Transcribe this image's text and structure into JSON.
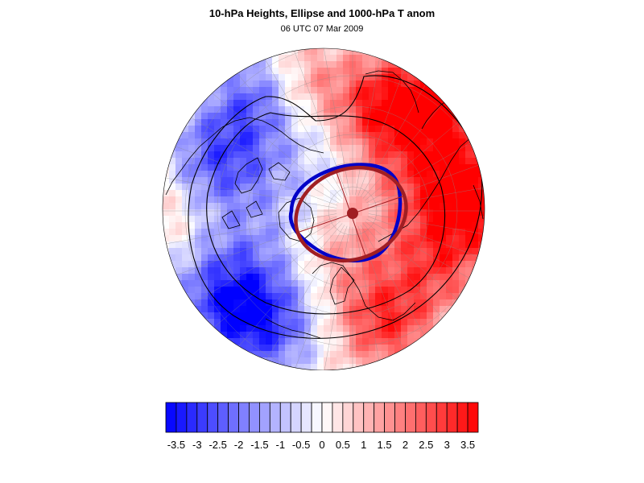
{
  "title": "10-hPa Heights, Ellipse and 1000-hPa T anom",
  "subtitle": "06 UTC 07 Mar 2009",
  "colors": {
    "cold_max": "#0000ff",
    "warm_max": "#ff0000",
    "neutral": "#ffffff",
    "ellipse_blue": "#0000c8",
    "ellipse_red": "#a01e23",
    "contour": "#000000"
  },
  "colorbar": {
    "levels": [
      -3.75,
      -3.5,
      -3.25,
      -3,
      -2.75,
      -2.5,
      -2.25,
      -2,
      -1.75,
      -1.5,
      -1.25,
      -1,
      -0.75,
      -0.5,
      -0.25,
      0,
      0.25,
      0.5,
      0.75,
      1,
      1.25,
      1.5,
      1.75,
      2,
      2.25,
      2.5,
      2.75,
      3,
      3.25,
      3.5,
      3.75
    ],
    "labels": [
      "-3.5",
      "-3",
      "-2.5",
      "-2",
      "-1.5",
      "-1",
      "-0.5",
      "0",
      "0.5",
      "1",
      "1.5",
      "2",
      "2.5",
      "3",
      "3.5"
    ]
  }
}
